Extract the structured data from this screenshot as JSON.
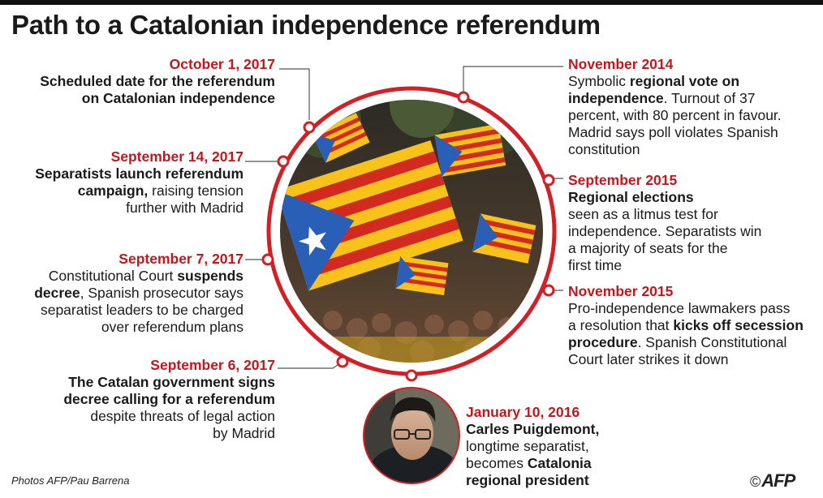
{
  "title": "Path to a Catalonian independence referendum",
  "events_left": [
    {
      "date": "October 1, 2017",
      "lines": [
        [
          {
            "t": "Scheduled date for the referendum",
            "b": true
          }
        ],
        [
          {
            "t": "on Catalonian independence",
            "b": true
          }
        ]
      ]
    },
    {
      "date": "September 14, 2017",
      "lines": [
        [
          {
            "t": "Separatists launch referendum",
            "b": true
          }
        ],
        [
          {
            "t": "campaign,",
            "b": true
          },
          {
            "t": " raising tension",
            "b": false
          }
        ],
        [
          {
            "t": "further with Madrid",
            "b": false
          }
        ]
      ]
    },
    {
      "date": "September 7, 2017",
      "lines": [
        [
          {
            "t": "Constitutional Court ",
            "b": false
          },
          {
            "t": "suspends",
            "b": true
          }
        ],
        [
          {
            "t": "decree",
            "b": true
          },
          {
            "t": ", Spanish prosecutor says",
            "b": false
          }
        ],
        [
          {
            "t": "separatist leaders to be charged",
            "b": false
          }
        ],
        [
          {
            "t": "over referendum plans",
            "b": false
          }
        ]
      ]
    },
    {
      "date": "September 6, 2017",
      "lines": [
        [
          {
            "t": "The Catalan government signs",
            "b": true
          }
        ],
        [
          {
            "t": "decree calling for a referendum",
            "b": true
          }
        ],
        [
          {
            "t": "despite threats of legal action",
            "b": false
          }
        ],
        [
          {
            "t": "by Madrid",
            "b": false
          }
        ]
      ]
    }
  ],
  "events_right": [
    {
      "date": "November 2014",
      "lines": [
        [
          {
            "t": "Symbolic ",
            "b": false
          },
          {
            "t": "regional vote on",
            "b": true
          }
        ],
        [
          {
            "t": "independence",
            "b": true
          },
          {
            "t": ". Turnout of 37",
            "b": false
          }
        ],
        [
          {
            "t": "percent, with 80 percent in favour.",
            "b": false
          }
        ],
        [
          {
            "t": "Madrid says poll violates Spanish",
            "b": false
          }
        ],
        [
          {
            "t": "constitution",
            "b": false
          }
        ]
      ]
    },
    {
      "date": "September 2015",
      "lines": [
        [
          {
            "t": "Regional elections",
            "b": true
          }
        ],
        [
          {
            "t": "seen as a litmus test for",
            "b": false
          }
        ],
        [
          {
            "t": "independence. Separatists win",
            "b": false
          }
        ],
        [
          {
            "t": "a majority of seats for the",
            "b": false
          }
        ],
        [
          {
            "t": "first time",
            "b": false
          }
        ]
      ]
    },
    {
      "date": "November 2015",
      "lines": [
        [
          {
            "t": "Pro-independence lawmakers pass",
            "b": false
          }
        ],
        [
          {
            "t": "a resolution that ",
            "b": false
          },
          {
            "t": "kicks off secession",
            "b": true
          }
        ],
        [
          {
            "t": "procedure",
            "b": true
          },
          {
            "t": ". Spanish Constitutional",
            "b": false
          }
        ],
        [
          {
            "t": "Court later strikes it down",
            "b": false
          }
        ]
      ]
    },
    {
      "date": "January 10, 2016",
      "lines": [
        [
          {
            "t": "Carles Puigdemont,",
            "b": true
          }
        ],
        [
          {
            "t": "longtime separatist,",
            "b": false
          }
        ],
        [
          {
            "t": "becomes ",
            "b": false
          },
          {
            "t": "Catalonia",
            "b": true
          }
        ],
        [
          {
            "t": "regional president",
            "b": true
          }
        ]
      ]
    }
  ],
  "credit": "Photos AFP/Pau Barrena",
  "logo": {
    "copyright": "©",
    "text": "AFP"
  },
  "colors": {
    "accent": "#c8151b",
    "text": "#1a1a1a",
    "ring": "#d31f26"
  }
}
